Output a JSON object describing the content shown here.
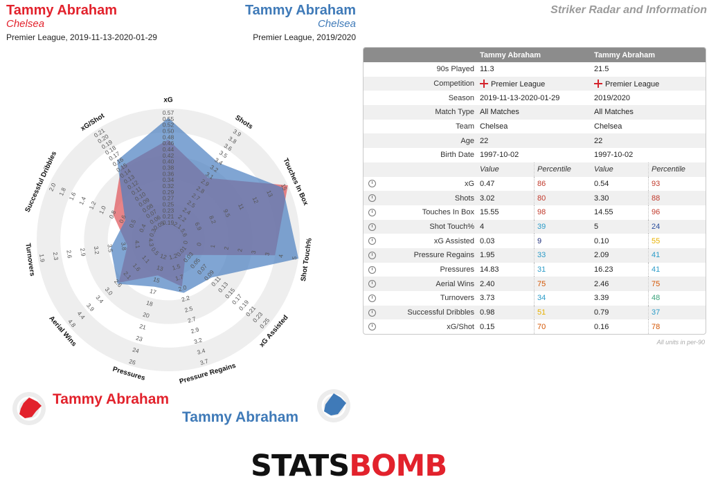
{
  "header": {
    "left_player": "Tammy Abraham",
    "left_team": "Chelsea",
    "left_context": "Premier League, 2019-11-13-2020-01-29",
    "right_player": "Tammy Abraham",
    "right_team": "Chelsea",
    "right_context": "Premier League, 2019/2020",
    "page_title": "Striker Radar and Information"
  },
  "colors": {
    "red": "#e2222c",
    "blue": "#3f7ab8",
    "red_fill": "#e05b60",
    "blue_fill": "#4a7fc0",
    "overlap_fill": "#6a5a90"
  },
  "chart_data": {
    "type": "radar",
    "axes": [
      {
        "label": "xG",
        "ticks": [
          "0.19",
          "0.21",
          "0.23",
          "0.25",
          "0.27",
          "0.29",
          "0.32",
          "0.34",
          "0.36",
          "0.38",
          "0.40",
          "0.42",
          "0.44",
          "0.46",
          "0.48",
          "0.50",
          "0.52",
          "0.55",
          "0.57"
        ]
      },
      {
        "label": "Shots",
        "ticks": [
          "2.1",
          "2.2",
          "2.4",
          "2.5",
          "2.7",
          "2.8",
          "2.9",
          "3.1",
          "3.2",
          "3.4",
          "3.5",
          "3.6",
          "3.8",
          "3.9"
        ]
      },
      {
        "label": "Touches In Box",
        "ticks": [
          "5.6",
          "6.9",
          "8.2",
          "9.5",
          "11",
          "12",
          "13",
          "15"
        ]
      },
      {
        "label": "Shot Touch%",
        "ticks": [
          "0",
          "0",
          "1",
          "2",
          "2",
          "3",
          "3",
          "4",
          "5"
        ]
      },
      {
        "label": "xG Assisted",
        "ticks": [
          "0.01",
          "0.03",
          "0.05",
          "0.07",
          "0.09",
          "0.11",
          "0.13",
          "0.15",
          "0.17",
          "0.19",
          "0.21",
          "0.23",
          "0.25"
        ]
      },
      {
        "label": "Pressure Regains",
        "ticks": [
          "1.2",
          "1.5",
          "1.7",
          "2.0",
          "2.2",
          "2.5",
          "2.7",
          "2.9",
          "3.2",
          "3.4",
          "3.7"
        ]
      },
      {
        "label": "Pressures",
        "ticks": [
          "12",
          "13",
          "15",
          "17",
          "18",
          "20",
          "21",
          "23",
          "24",
          "26"
        ]
      },
      {
        "label": "Aerial Wins",
        "ticks": [
          "0.5",
          "1.1",
          "1.6",
          "2.1",
          "2.6",
          "3.0",
          "3.4",
          "3.9",
          "4.4",
          "4.8"
        ]
      },
      {
        "label": "Turnovers",
        "ticks": [
          "4.3",
          "4.1",
          "3.8",
          "3.5",
          "3.2",
          "2.9",
          "2.6",
          "2.3",
          "1.9"
        ]
      },
      {
        "label": "Successful Dribbles",
        "ticks": [
          "0.3",
          "0.4",
          "0.5",
          "0.6",
          "0.8",
          "1.0",
          "1.2",
          "1.4",
          "1.6",
          "1.8",
          "2.0"
        ]
      },
      {
        "label": "xG/Shot",
        "ticks": [
          "0.05",
          "0.06",
          "0.07",
          "0.08",
          "0.09",
          "0.10",
          "0.11",
          "0.12",
          "0.13",
          "0.14",
          "0.15",
          "0.16",
          "0.17",
          "0.18",
          "0.19",
          "0.20",
          "0.21"
        ]
      }
    ],
    "series": [
      {
        "name": "Tammy Abraham",
        "context": "Premier League, 2019-11-13-2020-01-29",
        "color": "#e05b60",
        "values": [
          0.47,
          3.02,
          15.55,
          4,
          0.03,
          1.95,
          14.83,
          2.4,
          3.73,
          0.98,
          0.15
        ]
      },
      {
        "name": "Tammy Abraham",
        "context": "Premier League, 2019/2020",
        "color": "#4a7fc0",
        "values": [
          0.54,
          3.3,
          14.55,
          5,
          0.1,
          2.09,
          16.23,
          2.46,
          3.39,
          0.79,
          0.16
        ]
      }
    ]
  },
  "table": {
    "header": [
      "Tammy Abraham",
      "Tammy Abraham"
    ],
    "info_rows": [
      {
        "label": "90s Played",
        "a": "11.3",
        "b": "21.5"
      },
      {
        "label": "Competition",
        "a": "Premier League",
        "b": "Premier League"
      },
      {
        "label": "Season",
        "a": "2019-11-13-2020-01-29",
        "b": "2019/2020"
      },
      {
        "label": "Match Type",
        "a": "All Matches",
        "b": "All Matches"
      },
      {
        "label": "Team",
        "a": "Chelsea",
        "b": "Chelsea"
      },
      {
        "label": "Age",
        "a": "22",
        "b": "22"
      },
      {
        "label": "Birth Date",
        "a": "1997-10-02",
        "b": "1997-10-02"
      }
    ],
    "subheader": {
      "value": "Value",
      "percentile": "Percentile"
    },
    "stat_rows": [
      {
        "label": "xG",
        "av": "0.47",
        "ap": "86",
        "ac": "#c0392b",
        "bv": "0.54",
        "bp": "93",
        "bc": "#c0392b"
      },
      {
        "label": "Shots",
        "av": "3.02",
        "ap": "80",
        "ac": "#c0392b",
        "bv": "3.30",
        "bp": "88",
        "bc": "#c0392b"
      },
      {
        "label": "Touches In Box",
        "av": "15.55",
        "ap": "98",
        "ac": "#c0392b",
        "bv": "14.55",
        "bp": "96",
        "bc": "#c0392b"
      },
      {
        "label": "Shot Touch%",
        "av": "4",
        "ap": "39",
        "ac": "#2a9bc8",
        "bv": "5",
        "bp": "24",
        "bc": "#2a4d9b"
      },
      {
        "label": "xG Assisted",
        "av": "0.03",
        "ap": "9",
        "ac": "#1f2d7a",
        "bv": "0.10",
        "bp": "55",
        "bc": "#e8b100"
      },
      {
        "label": "Pressure Regains",
        "av": "1.95",
        "ap": "33",
        "ac": "#2a9bc8",
        "bv": "2.09",
        "bp": "41",
        "bc": "#2a9bc8"
      },
      {
        "label": "Pressures",
        "av": "14.83",
        "ap": "31",
        "ac": "#2a9bc8",
        "bv": "16.23",
        "bp": "41",
        "bc": "#2a9bc8"
      },
      {
        "label": "Aerial Wins",
        "av": "2.40",
        "ap": "75",
        "ac": "#d35400",
        "bv": "2.46",
        "bp": "75",
        "bc": "#d35400"
      },
      {
        "label": "Turnovers",
        "av": "3.73",
        "ap": "34",
        "ac": "#2a9bc8",
        "bv": "3.39",
        "bp": "48",
        "bc": "#3aa37a"
      },
      {
        "label": "Successful Dribbles",
        "av": "0.98",
        "ap": "51",
        "ac": "#e8b100",
        "bv": "0.79",
        "bp": "37",
        "bc": "#2a9bc8"
      },
      {
        "label": "xG/Shot",
        "av": "0.15",
        "ap": "70",
        "ac": "#d35400",
        "bv": "0.16",
        "bp": "78",
        "bc": "#d35400"
      }
    ],
    "footnote": "All units in per-90"
  },
  "legend": {
    "a_name": "Tammy Abraham",
    "b_name": "Tammy Abraham"
  },
  "logo": {
    "part1": "STATS",
    "part2": "BOMB"
  }
}
